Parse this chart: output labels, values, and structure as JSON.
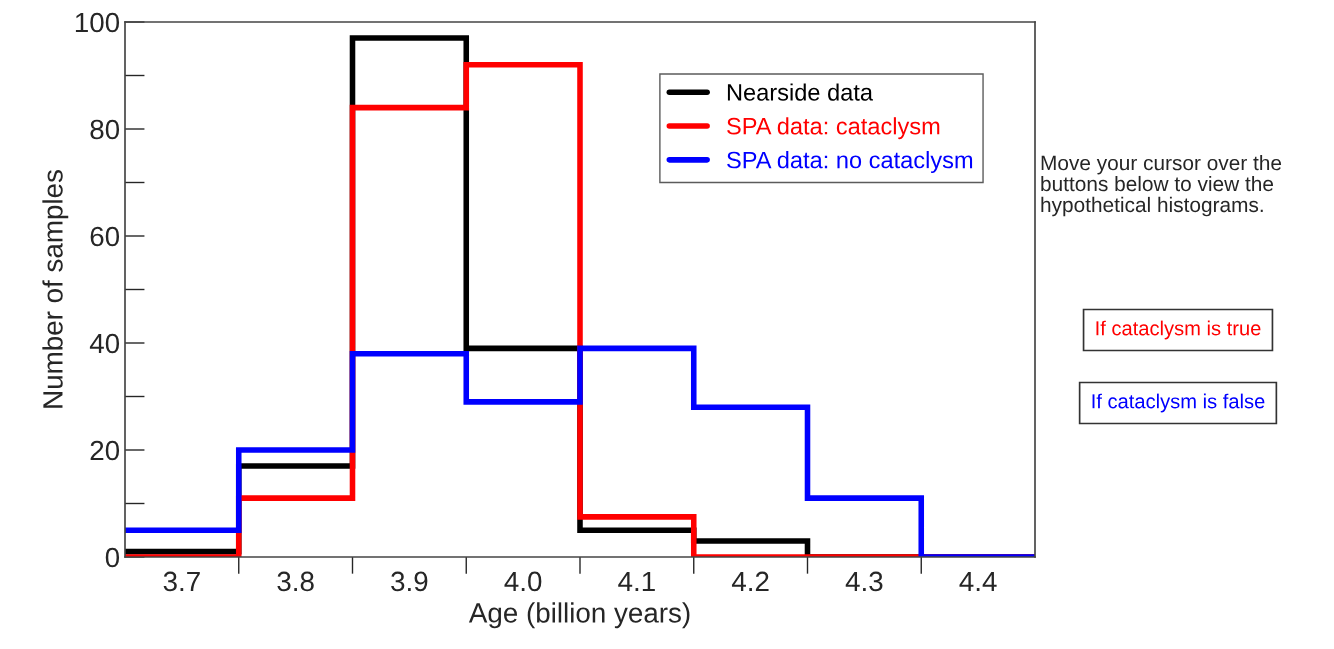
{
  "chart_data": {
    "type": "histogram",
    "xlabel": "Age (billion years)",
    "ylabel": "Number of samples",
    "bins": [
      3.65,
      3.75,
      3.85,
      3.95,
      4.05,
      4.15,
      4.25,
      4.35,
      4.45
    ],
    "series": [
      {
        "name": "Nearside data",
        "color": "#000000",
        "values": [
          1,
          17,
          97,
          39,
          5,
          3,
          0,
          0
        ]
      },
      {
        "name": "SPA data: cataclysm",
        "color": "#ff0000",
        "values": [
          0,
          11,
          84,
          92,
          7.5,
          0,
          0,
          0
        ]
      },
      {
        "name": "SPA data: no cataclysm",
        "color": "#0000ff",
        "values": [
          5,
          20,
          38,
          29,
          39,
          28,
          11,
          0
        ]
      }
    ],
    "xlim": [
      3.65,
      4.45
    ],
    "xticks": [
      3.7,
      3.8,
      3.9,
      {
        "value": 4.0,
        "label": "4.0"
      },
      4.1,
      4.2,
      4.3,
      4.4
    ],
    "ylim": [
      0,
      100
    ],
    "yticks": [
      0,
      20,
      40,
      60,
      80,
      100
    ],
    "grid": false,
    "legend": "top right",
    "annotations": [
      "Move your cursor over the buttons below to view the hypothetical histograms.",
      "If cataclysm is true",
      "If cataclysm is false"
    ]
  }
}
